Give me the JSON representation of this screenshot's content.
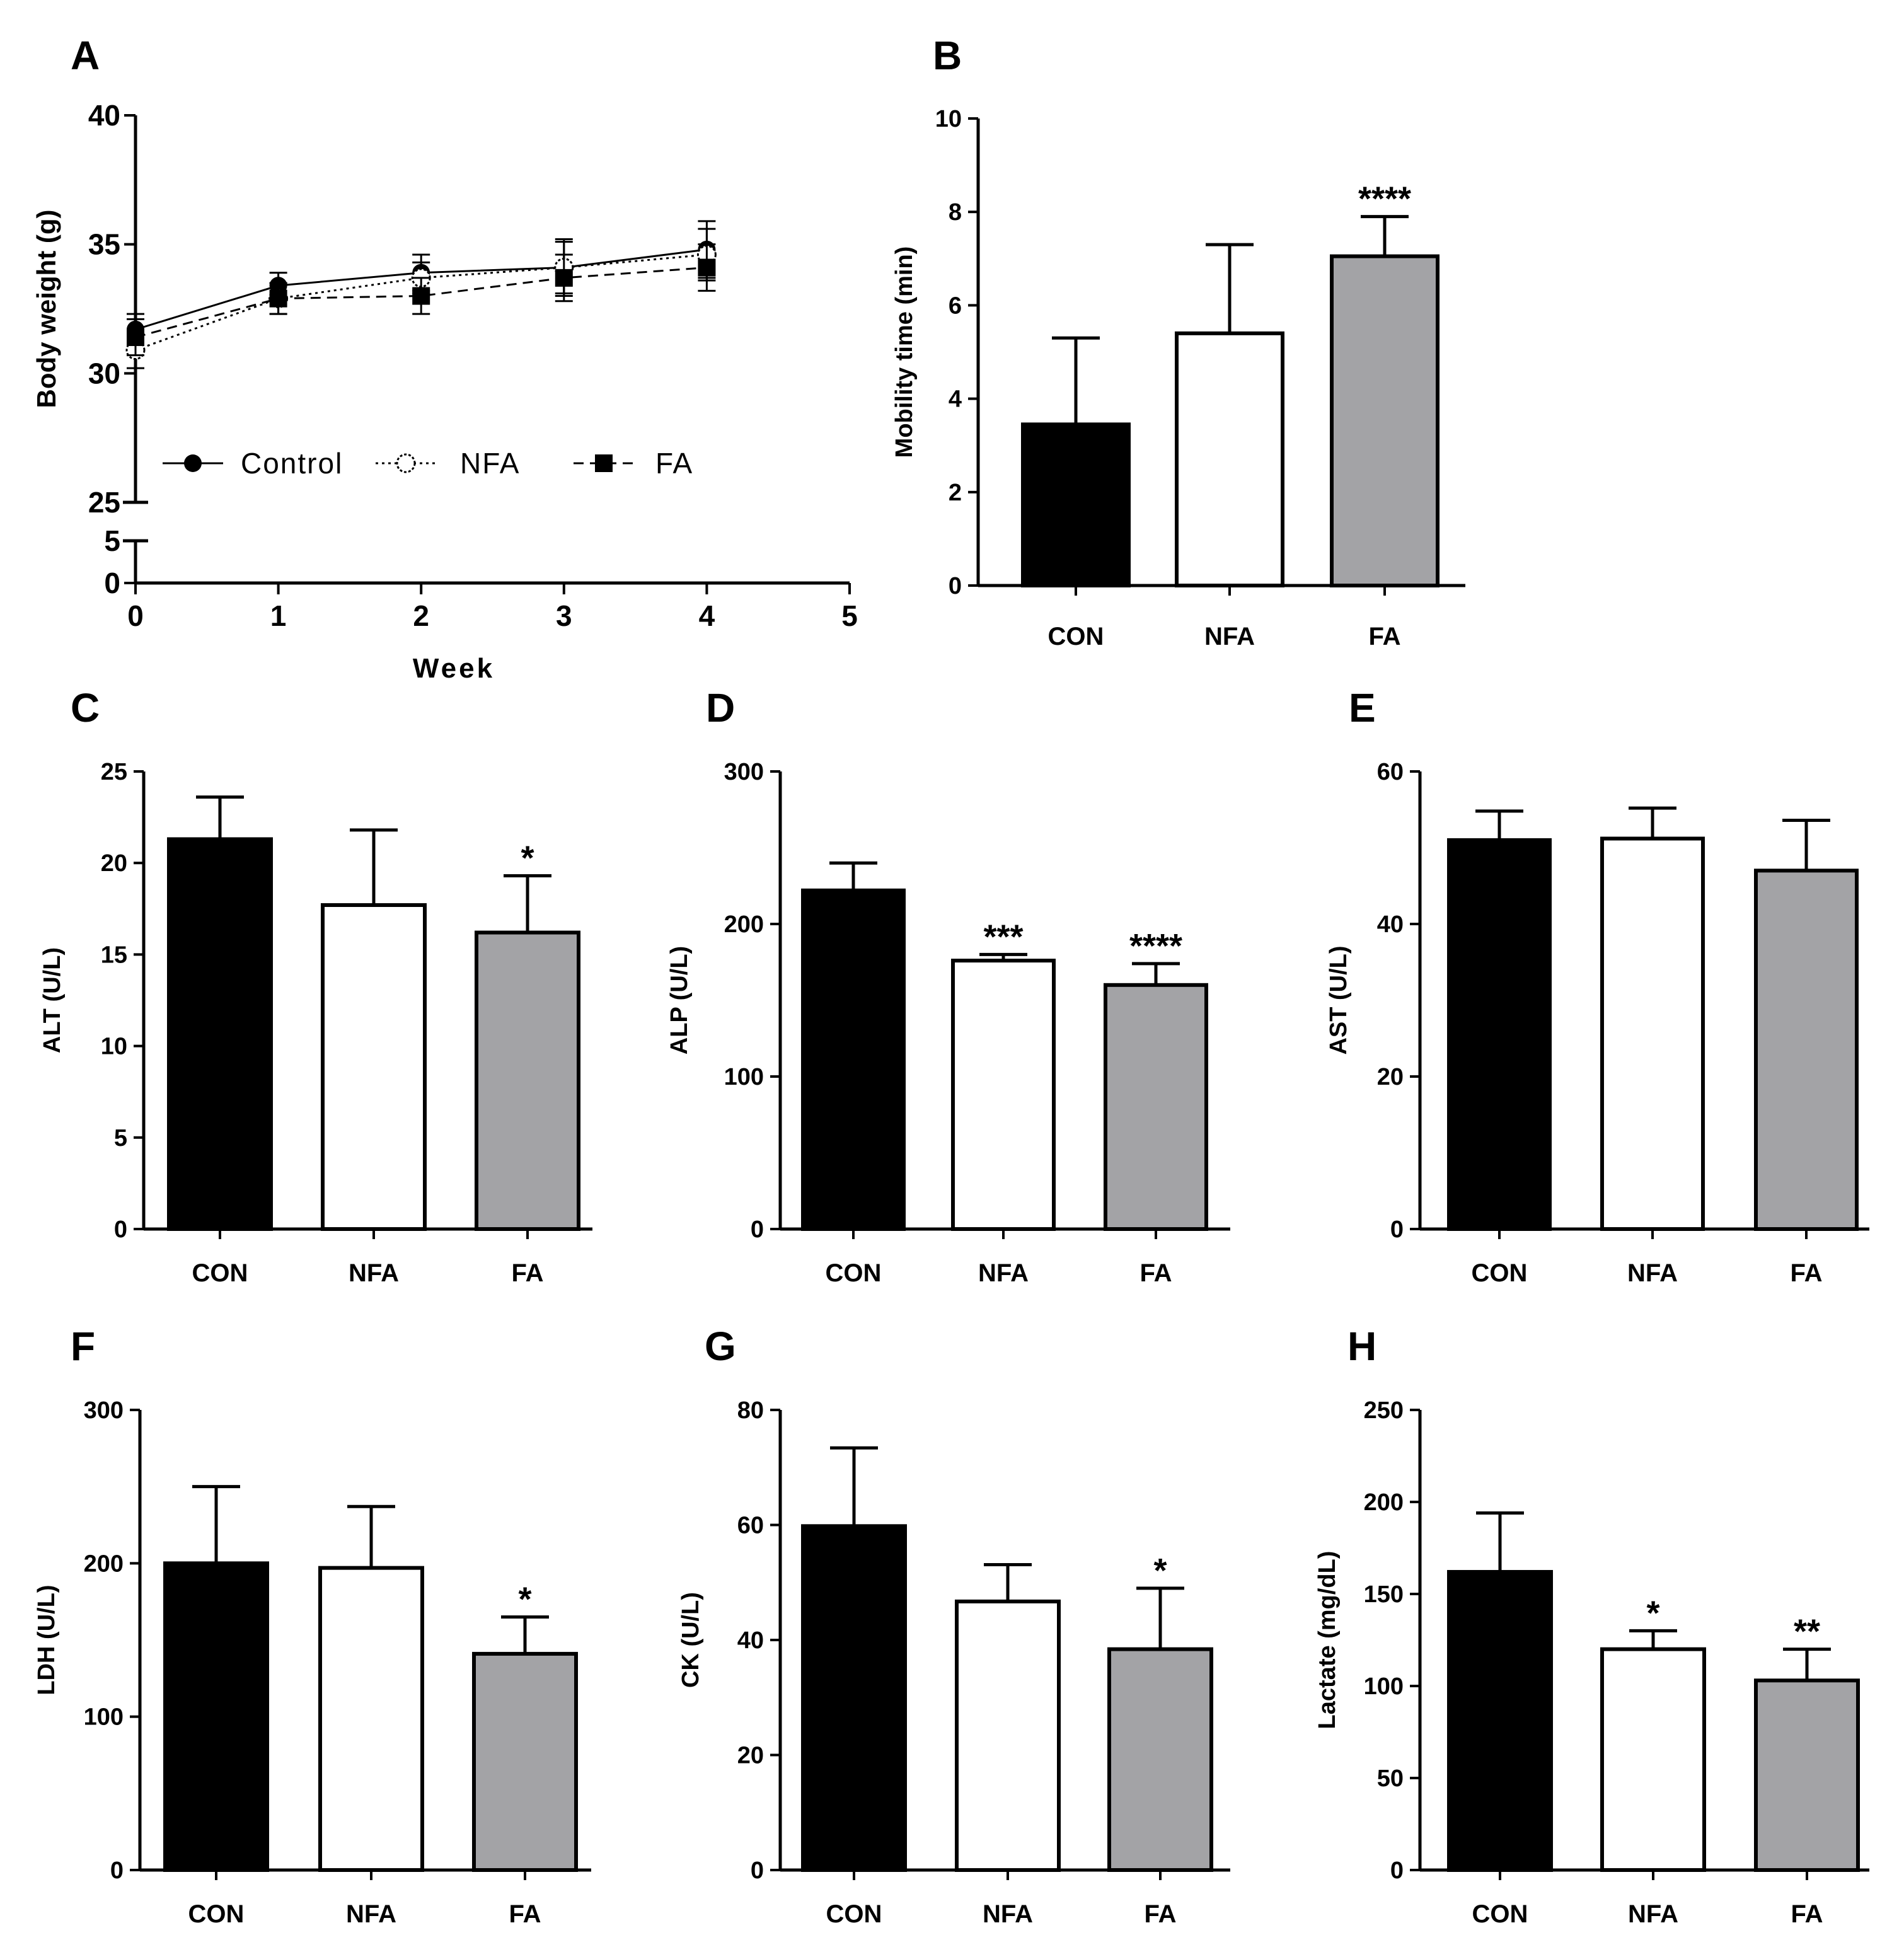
{
  "chart_data": [
    {
      "panel": "A",
      "type": "line",
      "xlabel": "Week",
      "ylabel": "Body weight (g)",
      "x": [
        0,
        1,
        2,
        3,
        4
      ],
      "xticks": [
        "0",
        "1",
        "2",
        "3",
        "4",
        "5"
      ],
      "xlim": [
        0,
        5
      ],
      "ylim": [
        0,
        40
      ],
      "axis_break": [
        5,
        25
      ],
      "yticks_lower": [
        "0",
        "5"
      ],
      "yticks_upper": [
        "25",
        "30",
        "35",
        "40"
      ],
      "series": [
        {
          "name": "Control",
          "marker": "filled-circle",
          "line": "solid",
          "values": [
            31.7,
            33.4,
            33.9,
            34.1,
            34.8
          ],
          "errors": [
            0.6,
            0.5,
            0.7,
            1.1,
            1.1
          ]
        },
        {
          "name": "NFA",
          "marker": "open-circle",
          "line": "dotted",
          "values": [
            30.9,
            32.9,
            33.7,
            34.1,
            34.6
          ],
          "errors": [
            0.7,
            0.6,
            0.6,
            1.0,
            1.0
          ]
        },
        {
          "name": "FA",
          "marker": "filled-square",
          "line": "dashed",
          "values": [
            31.4,
            32.9,
            33.0,
            33.7,
            34.1
          ],
          "errors": [
            0.7,
            0.6,
            0.7,
            0.9,
            0.9
          ]
        }
      ]
    },
    {
      "panel": "B",
      "type": "bar",
      "ylabel": "Mobility time (min)",
      "categories": [
        "CON",
        "NFA",
        "FA"
      ],
      "values": [
        3.45,
        5.4,
        7.05
      ],
      "errors": [
        1.85,
        1.9,
        0.85
      ],
      "significance": [
        "",
        "",
        "****"
      ],
      "ylim": [
        0,
        10
      ],
      "yticks": [
        "0",
        "2",
        "4",
        "6",
        "8",
        "10"
      ],
      "colors": [
        "#000000",
        "#ffffff",
        "#a3a3a6"
      ]
    },
    {
      "panel": "C",
      "type": "bar",
      "ylabel": "ALT  (U/L)",
      "categories": [
        "CON",
        "NFA",
        "FA"
      ],
      "values": [
        21.3,
        17.7,
        16.2
      ],
      "errors": [
        2.3,
        4.1,
        3.1
      ],
      "significance": [
        "",
        "",
        "*"
      ],
      "ylim": [
        0,
        25
      ],
      "yticks": [
        "0",
        "5",
        "10",
        "15",
        "20",
        "25"
      ],
      "colors": [
        "#000000",
        "#ffffff",
        "#a3a3a6"
      ]
    },
    {
      "panel": "D",
      "type": "bar",
      "ylabel": "ALP (U/L)",
      "categories": [
        "CON",
        "NFA",
        "FA"
      ],
      "values": [
        222,
        176,
        160
      ],
      "errors": [
        18,
        4,
        14
      ],
      "significance": [
        "",
        "***",
        "****"
      ],
      "ylim": [
        0,
        300
      ],
      "yticks": [
        "0",
        "100",
        "200",
        "300"
      ],
      "colors": [
        "#000000",
        "#ffffff",
        "#a3a3a6"
      ]
    },
    {
      "panel": "E",
      "type": "bar",
      "ylabel": "AST (U/L)",
      "categories": [
        "CON",
        "NFA",
        "FA"
      ],
      "values": [
        51,
        51.2,
        47
      ],
      "errors": [
        3.8,
        4.0,
        6.6
      ],
      "significance": [
        "",
        "",
        ""
      ],
      "ylim": [
        0,
        60
      ],
      "yticks": [
        "0",
        "20",
        "40",
        "60"
      ],
      "colors": [
        "#000000",
        "#ffffff",
        "#a3a3a6"
      ]
    },
    {
      "panel": "F",
      "type": "bar",
      "ylabel": "LDH (U/L)",
      "categories": [
        "CON",
        "NFA",
        "FA"
      ],
      "values": [
        200,
        197,
        141
      ],
      "errors": [
        50,
        40,
        24
      ],
      "significance": [
        "",
        "",
        "*"
      ],
      "ylim": [
        0,
        300
      ],
      "yticks": [
        "0",
        "100",
        "200",
        "300"
      ],
      "colors": [
        "#000000",
        "#ffffff",
        "#a3a3a6"
      ]
    },
    {
      "panel": "G",
      "type": "bar",
      "ylabel": "CK (U/L)",
      "categories": [
        "CON",
        "NFA",
        "FA"
      ],
      "values": [
        59.8,
        46.7,
        38.4
      ],
      "errors": [
        13.6,
        6.4,
        10.6
      ],
      "significance": [
        "",
        "",
        "*"
      ],
      "ylim": [
        0,
        80
      ],
      "yticks": [
        "0",
        "20",
        "40",
        "60",
        "80"
      ],
      "colors": [
        "#000000",
        "#ffffff",
        "#a3a3a6"
      ]
    },
    {
      "panel": "H",
      "type": "bar",
      "ylabel": "Lactate  (mg/dL)",
      "categories": [
        "CON",
        "NFA",
        "FA"
      ],
      "values": [
        162,
        120,
        103
      ],
      "errors": [
        32,
        10,
        17
      ],
      "significance": [
        "",
        "*",
        "**"
      ],
      "ylim": [
        0,
        250
      ],
      "yticks": [
        "0",
        "50",
        "100",
        "150",
        "200",
        "250"
      ],
      "colors": [
        "#000000",
        "#ffffff",
        "#a3a3a6"
      ]
    }
  ]
}
